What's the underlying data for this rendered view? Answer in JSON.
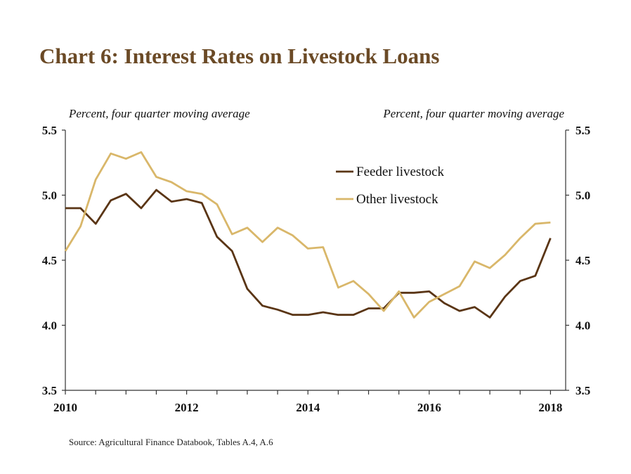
{
  "title": "Chart 6: Interest Rates on Livestock Loans",
  "left_axis_unit": "Percent, four quarter moving average",
  "right_axis_unit": "Percent, four quarter moving average",
  "source": "Source: Agricultural Finance Databook, Tables A.4, A.6",
  "chart_data": {
    "type": "line",
    "ylim": [
      3.5,
      5.5
    ],
    "yticks": [
      3.5,
      4.0,
      4.5,
      5.0,
      5.5
    ],
    "ytick_labels": [
      "3.5",
      "4.0",
      "4.5",
      "5.0",
      "5.5"
    ],
    "xlim": [
      2010,
      2018.25
    ],
    "xticks": [
      2010,
      2012,
      2014,
      2016,
      2018
    ],
    "xtick_labels": [
      "2010",
      "2012",
      "2014",
      "2016",
      "2018"
    ],
    "x": [
      2010.0,
      2010.25,
      2010.5,
      2010.75,
      2011.0,
      2011.25,
      2011.5,
      2011.75,
      2012.0,
      2012.25,
      2012.5,
      2012.75,
      2013.0,
      2013.25,
      2013.5,
      2013.75,
      2014.0,
      2014.25,
      2014.5,
      2014.75,
      2015.0,
      2015.25,
      2015.5,
      2015.75,
      2016.0,
      2016.25,
      2016.5,
      2016.75,
      2017.0,
      2017.25,
      2017.5,
      2017.75,
      2018.0,
      2018.25
    ],
    "grid": false,
    "legend_position": "upper-right inside plot",
    "series": [
      {
        "name": "Feeder livestock",
        "color": "#5a3515",
        "values": [
          4.9,
          4.9,
          4.78,
          4.96,
          5.01,
          4.9,
          5.04,
          4.95,
          4.97,
          4.94,
          4.68,
          4.57,
          4.28,
          4.15,
          4.12,
          4.08,
          4.08,
          4.1,
          4.08,
          4.08,
          4.13,
          4.13,
          4.25,
          4.25,
          4.26,
          4.17,
          4.11,
          4.14,
          4.06,
          4.22,
          4.34,
          4.38,
          4.67,
          null
        ]
      },
      {
        "name": "Other livestock",
        "color": "#d9b76a",
        "values": [
          4.57,
          4.76,
          5.12,
          5.32,
          5.28,
          5.33,
          5.14,
          5.1,
          5.03,
          5.01,
          4.93,
          4.7,
          4.75,
          4.64,
          4.75,
          4.69,
          4.59,
          4.6,
          4.29,
          4.34,
          4.24,
          4.11,
          4.26,
          4.06,
          4.18,
          4.24,
          4.3,
          4.49,
          4.44,
          4.54,
          4.67,
          4.78,
          4.79,
          null
        ]
      }
    ]
  }
}
